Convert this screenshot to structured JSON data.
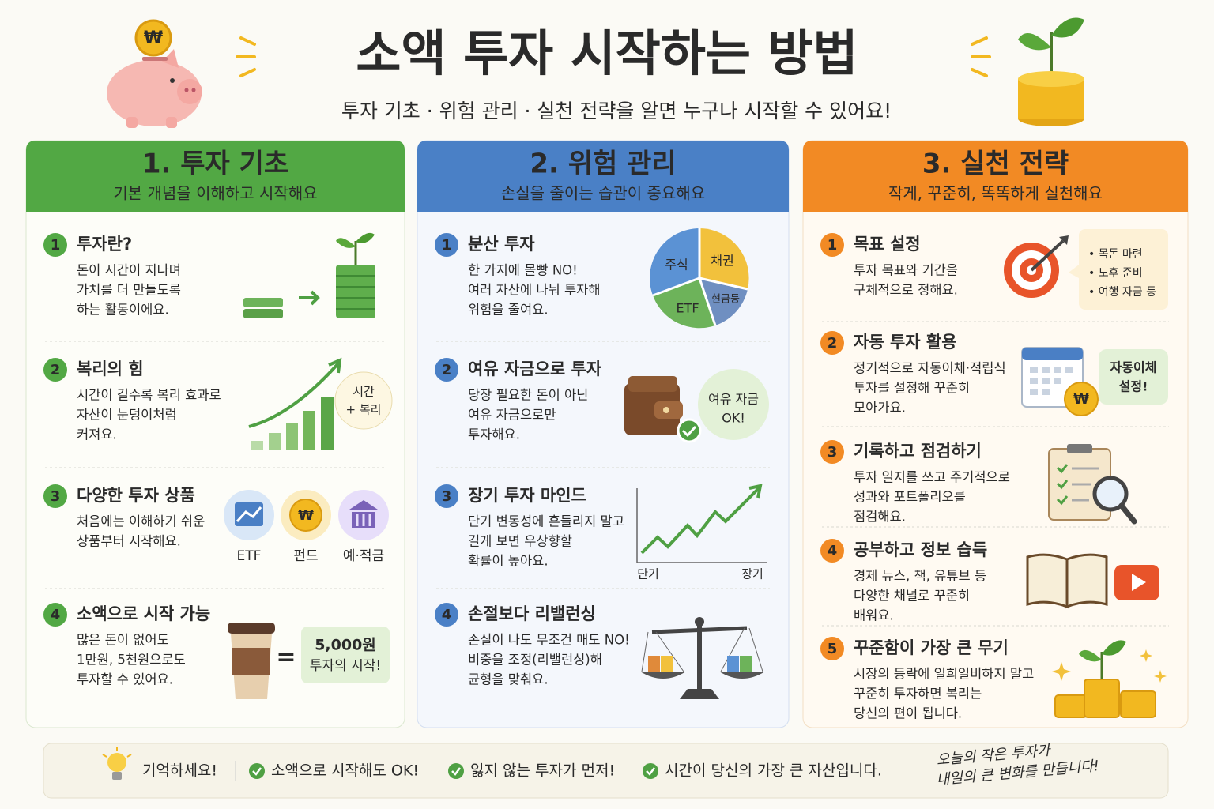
{
  "header": {
    "title": "소액 투자 시작하는 방법",
    "subtitle": "투자 기초 · 위험 관리 · 실천 전략을 알면 누구나 시작할 수 있어요!",
    "currency_symbol": "₩"
  },
  "columns": [
    {
      "title": "1. 투자 기초",
      "subtitle": "기본 개념을 이해하고 시작해요",
      "items": [
        {
          "number": "1",
          "title": "투자란?",
          "body": [
            "돈이 시간이 지나며",
            "가치를 더 만들도록",
            "하는 활동이에요."
          ]
        },
        {
          "number": "2",
          "title": "복리의 힘",
          "body": [
            "시간이 길수록 복리 효과로",
            "자산이 눈덩이처럼",
            "커져요."
          ],
          "bubble": [
            "시간",
            "+ 복리"
          ]
        },
        {
          "number": "3",
          "title": "다양한 투자 상품",
          "body": [
            "처음에는 이해하기 쉬운",
            "상품부터 시작해요."
          ],
          "products": [
            "ETF",
            "펀드",
            "예·적금"
          ]
        },
        {
          "number": "4",
          "title": "소액으로 시작 가능",
          "body": [
            "많은 돈이 없어도",
            "1만원, 5천원으로도",
            "투자할 수 있어요."
          ],
          "equals": "=",
          "note": [
            "5,000원",
            "투자의 시작!"
          ]
        }
      ]
    },
    {
      "title": "2. 위험 관리",
      "subtitle": "손실을 줄이는 습관이 중요해요",
      "items": [
        {
          "number": "1",
          "title": "분산 투자",
          "body": [
            "한 가지에 몰빵 NO!",
            "여러 자산에 나눠 투자해",
            "위험을 줄여요."
          ],
          "pie_labels": [
            "주식",
            "채권",
            "현금등",
            "ETF"
          ]
        },
        {
          "number": "2",
          "title": "여유 자금으로 투자",
          "body": [
            "당장 필요한 돈이 아닌",
            "여유 자금으로만",
            "투자해요."
          ],
          "badge": [
            "여유 자금",
            "OK!"
          ]
        },
        {
          "number": "3",
          "title": "장기 투자 마인드",
          "body": [
            "단기 변동성에 흔들리지 말고",
            "길게 보면 우상향할",
            "확률이 높아요."
          ],
          "axis_labels": [
            "단기",
            "장기"
          ]
        },
        {
          "number": "4",
          "title": "손절보다 리밸런싱",
          "body": [
            "손실이 나도 무조건 매도 NO!",
            "비중을 조정(리밸런싱)해",
            "균형을 맞춰요."
          ]
        }
      ]
    },
    {
      "title": "3. 실천 전략",
      "subtitle": "작게, 꾸준히, 똑똑하게 실천해요",
      "items": [
        {
          "number": "1",
          "title": "목표 설정",
          "body": [
            "투자 목표와 기간을",
            "구체적으로 정해요."
          ],
          "goals": [
            "• 목돈 마련",
            "• 노후 준비",
            "• 여행 자금 등"
          ]
        },
        {
          "number": "2",
          "title": "자동 투자 활용",
          "body": [
            "정기적으로 자동이체·적립식",
            "투자를 설정해 꾸준히",
            "모아가요."
          ],
          "badge": [
            "자동이체",
            "설정!"
          ]
        },
        {
          "number": "3",
          "title": "기록하고 점검하기",
          "body": [
            "투자 일지를 쓰고 주기적으로",
            "성과와 포트폴리오를",
            "점검해요."
          ]
        },
        {
          "number": "4",
          "title": "공부하고 정보 습득",
          "body": [
            "경제 뉴스, 책, 유튜브 등",
            "다양한 채널로 꾸준히",
            "배워요."
          ]
        },
        {
          "number": "5",
          "title": "꾸준함이 가장 큰 무기",
          "body": [
            "시장의 등락에 일희일비하지 말고",
            "꾸준히 투자하면 복리는",
            "당신의 편이 됩니다."
          ]
        }
      ]
    }
  ],
  "footer": {
    "label": "기억하세요!",
    "points": [
      "소액으로 시작해도 OK!",
      "잃지 않는 투자가 먼저!",
      "시간이 당신의 가장 큰 자산입니다."
    ],
    "slogan": [
      "오늘의 작은 투자가",
      "내일의 큰 변화를 만듭니다!"
    ]
  }
}
